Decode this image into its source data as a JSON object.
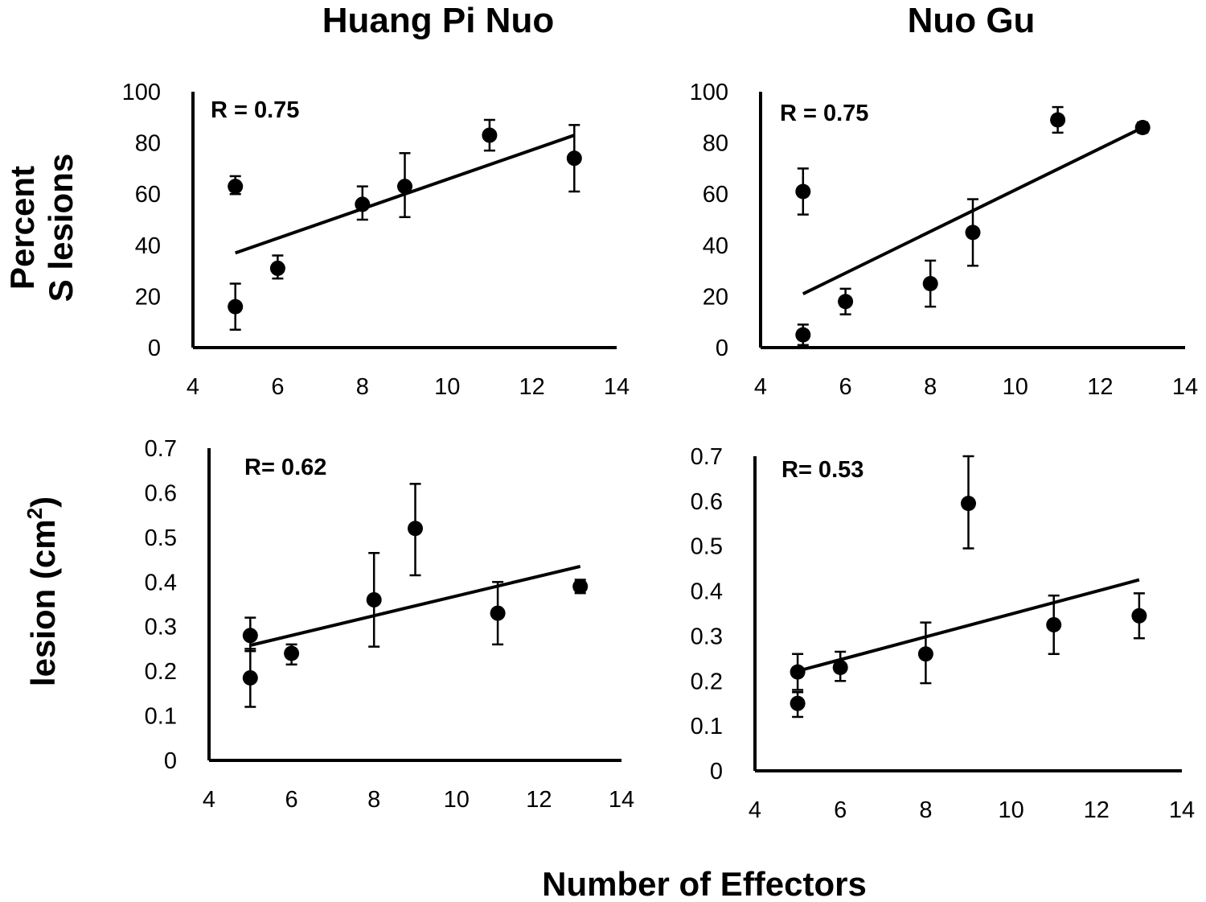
{
  "titles": {
    "left": "Huang Pi Nuo",
    "right": "Nuo Gu"
  },
  "ylabel_top": {
    "line1": "Percent",
    "line2": "S lesions"
  },
  "ylabel_bottom": {
    "text": "lesion  (cm",
    "sup": "2",
    "close": ")"
  },
  "xlabel": "Number of Effectors",
  "chart_data": [
    {
      "type": "scatter",
      "panel": "top-left",
      "annotation": "R = 0.75",
      "xlim": [
        4,
        14
      ],
      "ylim": [
        0,
        100
      ],
      "xticks": [
        "4",
        "6",
        "8",
        "10",
        "12",
        "14"
      ],
      "yticks": [
        "0",
        "20",
        "40",
        "60",
        "80",
        "100"
      ],
      "points": [
        {
          "x": 5,
          "y": 63,
          "lo": 60,
          "hi": 67
        },
        {
          "x": 5,
          "y": 16,
          "lo": 7,
          "hi": 25
        },
        {
          "x": 6,
          "y": 31,
          "lo": 27,
          "hi": 36
        },
        {
          "x": 8,
          "y": 56,
          "lo": 50,
          "hi": 63
        },
        {
          "x": 9,
          "y": 63,
          "lo": 51,
          "hi": 76
        },
        {
          "x": 11,
          "y": 83,
          "lo": 77,
          "hi": 89
        },
        {
          "x": 13,
          "y": 74,
          "lo": 61,
          "hi": 87
        }
      ],
      "trend": {
        "x0": 5,
        "y0": 37,
        "x1": 13,
        "y1": 83
      }
    },
    {
      "type": "scatter",
      "panel": "top-right",
      "annotation": "R = 0.75",
      "xlim": [
        4,
        14
      ],
      "ylim": [
        0,
        100
      ],
      "xticks": [
        "4",
        "6",
        "8",
        "10",
        "12",
        "14"
      ],
      "yticks": [
        "0",
        "20",
        "40",
        "60",
        "80",
        "100"
      ],
      "points": [
        {
          "x": 5,
          "y": 61,
          "lo": 52,
          "hi": 70
        },
        {
          "x": 5,
          "y": 5,
          "lo": 1,
          "hi": 9
        },
        {
          "x": 6,
          "y": 18,
          "lo": 13,
          "hi": 23
        },
        {
          "x": 8,
          "y": 25,
          "lo": 16,
          "hi": 34
        },
        {
          "x": 9,
          "y": 45,
          "lo": 32,
          "hi": 58
        },
        {
          "x": 11,
          "y": 89,
          "lo": 84,
          "hi": 94
        },
        {
          "x": 13,
          "y": 86,
          "lo": 84,
          "hi": 88
        }
      ],
      "trend": {
        "x0": 5,
        "y0": 21,
        "x1": 13,
        "y1": 86
      }
    },
    {
      "type": "scatter",
      "panel": "bottom-left",
      "annotation": "R= 0.62",
      "xlim": [
        4,
        14
      ],
      "ylim": [
        0,
        0.7
      ],
      "xticks": [
        "4",
        "6",
        "8",
        "10",
        "12",
        "14"
      ],
      "yticks": [
        "0",
        "0.1",
        "0.2",
        "0.3",
        "0.4",
        "0.5",
        "0.6",
        "0.7"
      ],
      "points": [
        {
          "x": 5,
          "y": 0.28,
          "lo": 0.245,
          "hi": 0.32
        },
        {
          "x": 5,
          "y": 0.185,
          "lo": 0.12,
          "hi": 0.25
        },
        {
          "x": 6,
          "y": 0.24,
          "lo": 0.215,
          "hi": 0.26
        },
        {
          "x": 8,
          "y": 0.36,
          "lo": 0.255,
          "hi": 0.465
        },
        {
          "x": 9,
          "y": 0.52,
          "lo": 0.415,
          "hi": 0.62
        },
        {
          "x": 11,
          "y": 0.33,
          "lo": 0.26,
          "hi": 0.4
        },
        {
          "x": 13,
          "y": 0.39,
          "lo": 0.375,
          "hi": 0.405
        }
      ],
      "trend": {
        "x0": 5,
        "y0": 0.258,
        "x1": 13,
        "y1": 0.435
      }
    },
    {
      "type": "scatter",
      "panel": "bottom-right",
      "annotation": "R= 0.53",
      "xlim": [
        4,
        14
      ],
      "ylim": [
        0,
        0.7
      ],
      "xticks": [
        "4",
        "6",
        "8",
        "10",
        "12",
        "14"
      ],
      "yticks": [
        "0",
        "0.1",
        "0.2",
        "0.3",
        "0.4",
        "0.5",
        "0.6",
        "0.7"
      ],
      "points": [
        {
          "x": 5,
          "y": 0.22,
          "lo": 0.18,
          "hi": 0.26
        },
        {
          "x": 5,
          "y": 0.15,
          "lo": 0.12,
          "hi": 0.175
        },
        {
          "x": 6,
          "y": 0.23,
          "lo": 0.2,
          "hi": 0.265
        },
        {
          "x": 8,
          "y": 0.26,
          "lo": 0.195,
          "hi": 0.33
        },
        {
          "x": 9,
          "y": 0.595,
          "lo": 0.495,
          "hi": 0.7
        },
        {
          "x": 11,
          "y": 0.325,
          "lo": 0.26,
          "hi": 0.39
        },
        {
          "x": 13,
          "y": 0.345,
          "lo": 0.295,
          "hi": 0.395
        }
      ],
      "trend": {
        "x0": 5,
        "y0": 0.222,
        "x1": 13,
        "y1": 0.425
      }
    }
  ]
}
